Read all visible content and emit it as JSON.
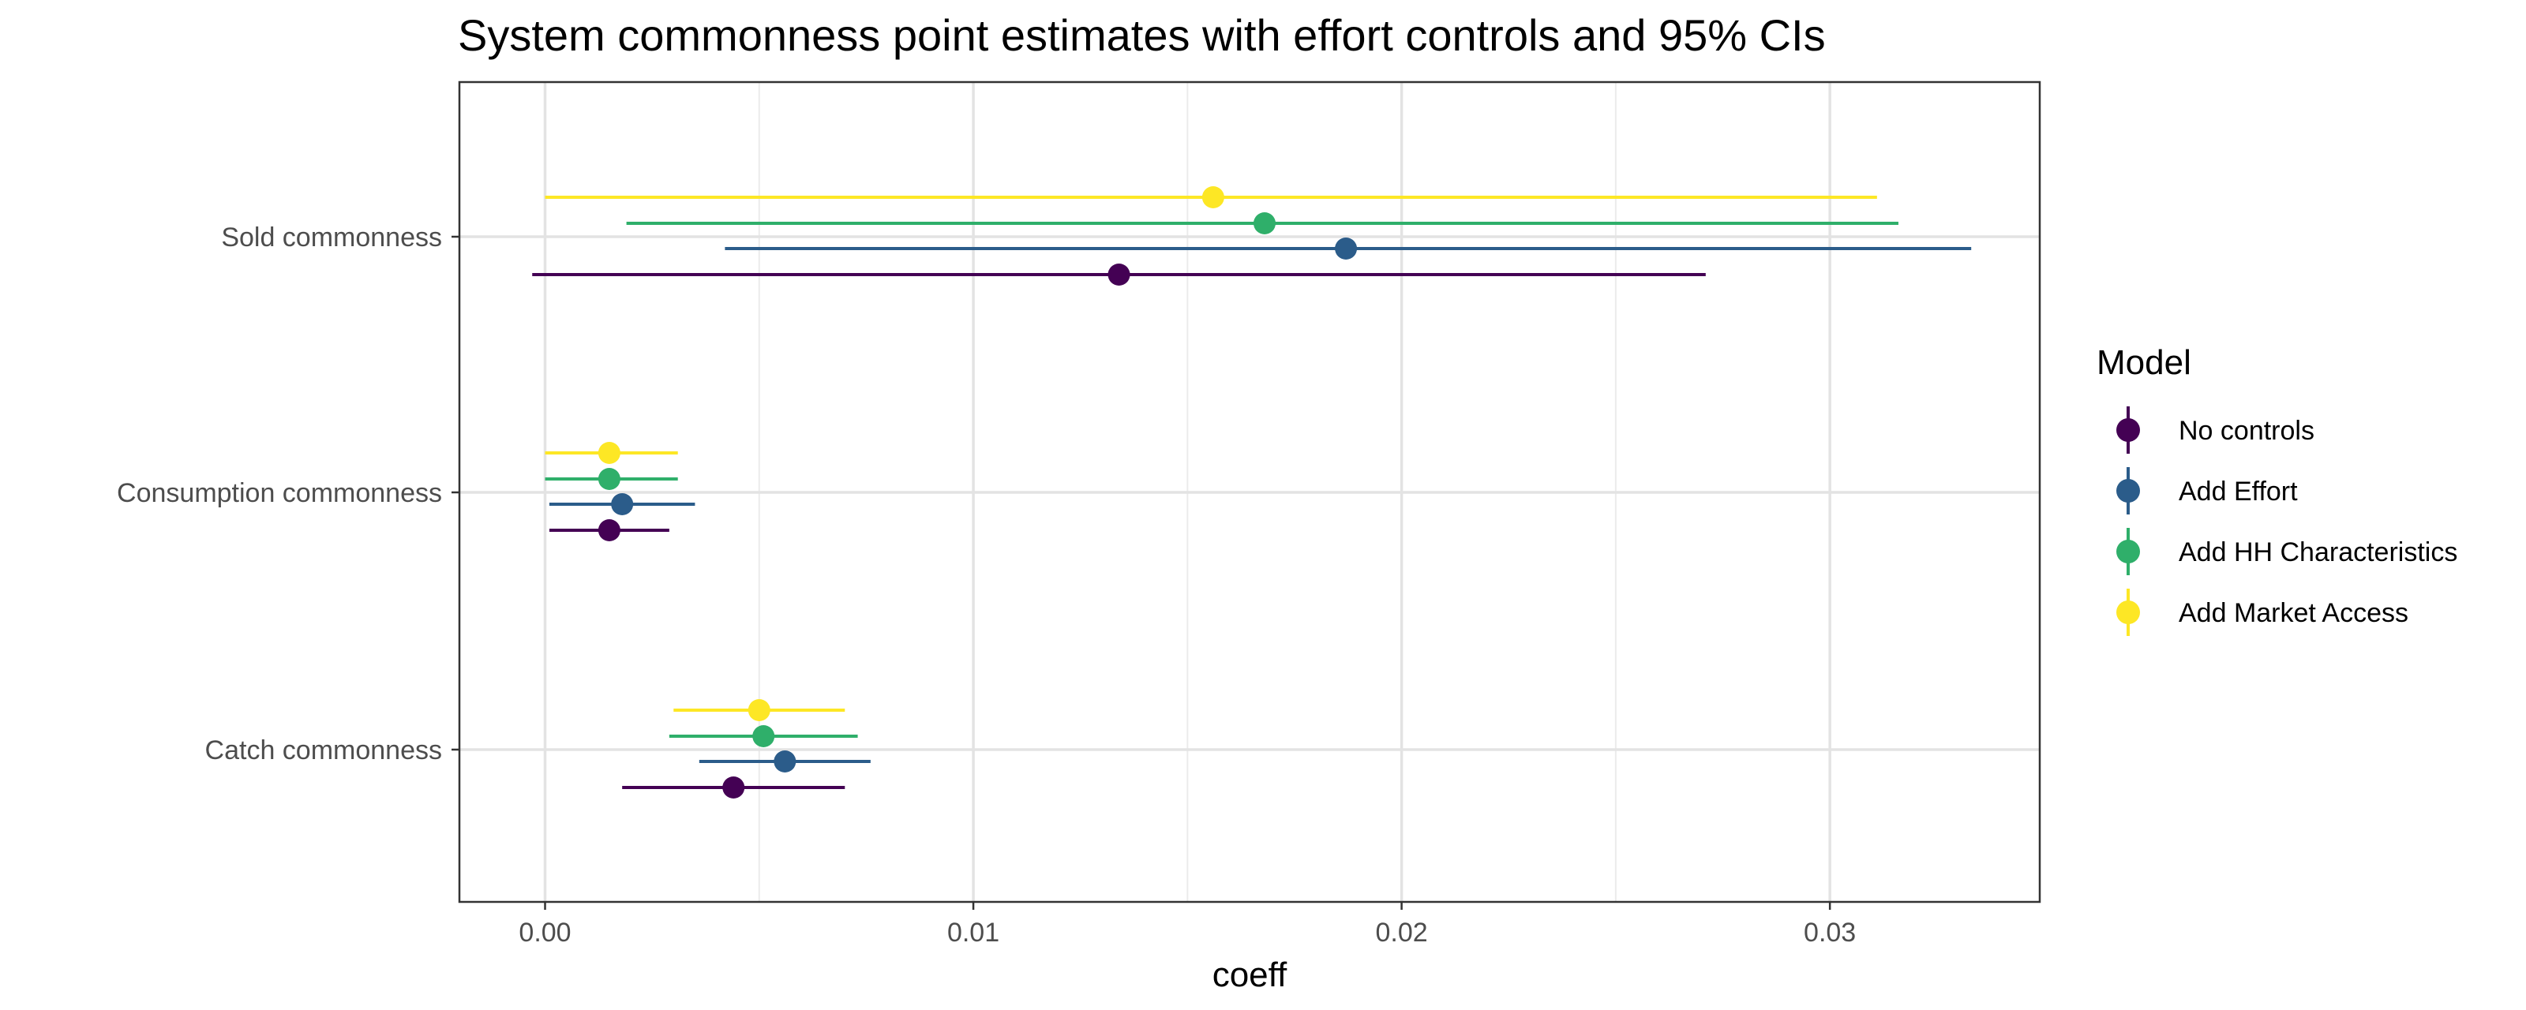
{
  "chart_data": {
    "type": "scatter",
    "title": "System commonness point estimates with effort controls and 95% CIs",
    "xlabel": "coeff",
    "ylabel": "",
    "xlim": [
      -0.002,
      0.0349
    ],
    "x_ticks": [
      0.0,
      0.01,
      0.02,
      0.03
    ],
    "x_tick_labels": [
      "0.00",
      "0.01",
      "0.02",
      "0.03"
    ],
    "grid": true,
    "categories": [
      "Sold commonness",
      "Consumption commonness",
      "Catch commonness"
    ],
    "legend": {
      "title": "Model",
      "placement": "right"
    },
    "series": [
      {
        "name": "No controls",
        "color": "#440154",
        "estimates": [
          0.0134,
          0.0015,
          0.0044
        ],
        "ci_low": [
          -0.0003,
          0.0001,
          0.0018
        ],
        "ci_high": [
          0.0271,
          0.0029,
          0.007
        ]
      },
      {
        "name": "Add Effort",
        "color": "#2B5C8A",
        "estimates": [
          0.0187,
          0.0018,
          0.0056
        ],
        "ci_low": [
          0.0042,
          0.0001,
          0.0036
        ],
        "ci_high": [
          0.0333,
          0.0035,
          0.0076
        ]
      },
      {
        "name": "Add HH Characteristics",
        "color": "#2FAF6A",
        "estimates": [
          0.0168,
          0.0015,
          0.0051
        ],
        "ci_low": [
          0.0019,
          0.0,
          0.0029
        ],
        "ci_high": [
          0.0316,
          0.0031,
          0.0073
        ]
      },
      {
        "name": "Add Market Access",
        "color": "#FDE725",
        "estimates": [
          0.0156,
          0.0015,
          0.005
        ],
        "ci_low": [
          0.0,
          0.0,
          0.003
        ],
        "ci_high": [
          0.0311,
          0.0031,
          0.007
        ]
      }
    ]
  }
}
